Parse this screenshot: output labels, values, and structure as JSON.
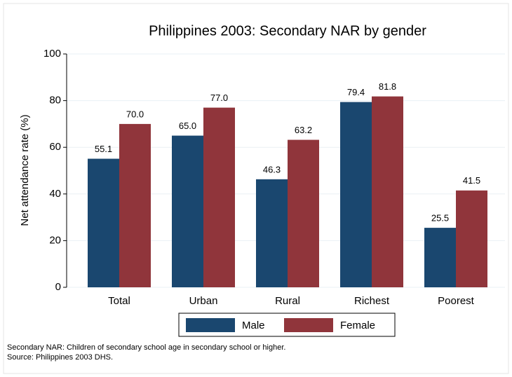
{
  "chart_data": {
    "type": "bar",
    "title": "Philippines 2003: Secondary NAR by gender",
    "y_label": "Net attendance rate (%)",
    "categories": [
      "Total",
      "Urban",
      "Rural",
      "Richest",
      "Poorest"
    ],
    "series": [
      {
        "name": "Male",
        "color": "#1a476f",
        "values": [
          55.1,
          65.0,
          46.3,
          79.4,
          25.5
        ],
        "value_labels": [
          "55.1",
          "65.0",
          "46.3",
          "79.4",
          "25.5"
        ]
      },
      {
        "name": "Female",
        "color": "#90353b",
        "values": [
          70.0,
          77.0,
          63.2,
          81.8,
          41.5
        ],
        "value_labels": [
          "70.0",
          "77.0",
          "63.2",
          "81.8",
          "41.5"
        ]
      }
    ],
    "ylim": [
      0,
      100
    ],
    "yticks": [
      0,
      20,
      40,
      60,
      80,
      100
    ],
    "grid": true,
    "legend": "bottom",
    "notes": [
      "Secondary NAR: Children of secondary school age in secondary school or higher.",
      "Source: Philippines 2003 DHS."
    ]
  }
}
